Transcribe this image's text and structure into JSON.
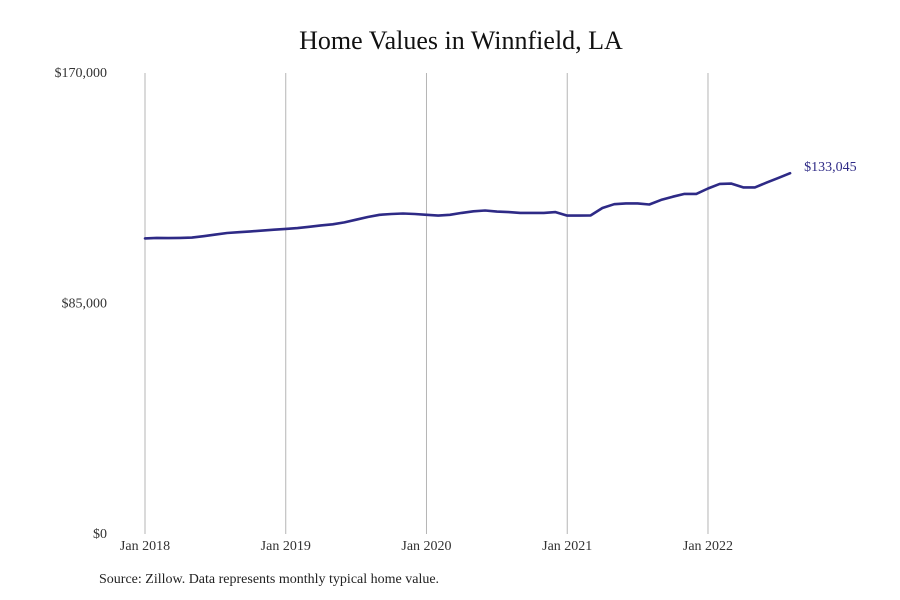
{
  "chart_data": {
    "type": "line",
    "title": "Home Values in Winnfield, LA",
    "xlabel": "",
    "ylabel": "",
    "ylim": [
      0,
      170000
    ],
    "xlim": [
      "2018-01",
      "2022-12"
    ],
    "y_ticks": [
      {
        "value": 0,
        "label": "$0"
      },
      {
        "value": 85000,
        "label": "$85,000"
      },
      {
        "value": 170000,
        "label": "$170,000"
      }
    ],
    "x_ticks": [
      {
        "date": "2018-01",
        "label": "Jan 2018"
      },
      {
        "date": "2019-01",
        "label": "Jan 2019"
      },
      {
        "date": "2020-01",
        "label": "Jan 2020"
      },
      {
        "date": "2021-01",
        "label": "Jan 2021"
      },
      {
        "date": "2022-01",
        "label": "Jan 2022"
      }
    ],
    "grid": "vertical",
    "line_color": "#2e2a86",
    "end_label": "$133,045",
    "series": [
      {
        "x": [
          "2018-01",
          "2018-02",
          "2018-03",
          "2018-04",
          "2018-05",
          "2018-06",
          "2018-07",
          "2018-08",
          "2018-09",
          "2018-10",
          "2018-11",
          "2018-12",
          "2019-01",
          "2019-02",
          "2019-03",
          "2019-04",
          "2019-05",
          "2019-06",
          "2019-07",
          "2019-08",
          "2019-09",
          "2019-10",
          "2019-11",
          "2019-12",
          "2020-01",
          "2020-02",
          "2020-03",
          "2020-04",
          "2020-05",
          "2020-06",
          "2020-07",
          "2020-08",
          "2020-09",
          "2020-10",
          "2020-11",
          "2020-12",
          "2021-01",
          "2021-02",
          "2021-03",
          "2021-04",
          "2021-05",
          "2021-06",
          "2021-07",
          "2021-08",
          "2021-09",
          "2021-10",
          "2021-11",
          "2021-12",
          "2022-01",
          "2022-02",
          "2022-03",
          "2022-04",
          "2022-05",
          "2022-06",
          "2022-07",
          "2022-08"
        ],
        "values": [
          109000,
          109200,
          109100,
          109200,
          109300,
          109800,
          110400,
          111000,
          111300,
          111600,
          111900,
          112200,
          112500,
          112800,
          113300,
          113800,
          114200,
          114900,
          115900,
          116900,
          117700,
          118000,
          118200,
          118000,
          117700,
          117400,
          117700,
          118400,
          119000,
          119300,
          118900,
          118700,
          118400,
          118400,
          118400,
          118700,
          117400,
          117400,
          117500,
          120200,
          121600,
          121900,
          121900,
          121500,
          123200,
          124400,
          125400,
          125400,
          127400,
          129100,
          129200,
          127800,
          127800,
          129600,
          131300,
          133045
        ]
      }
    ]
  },
  "source_note": "Source: Zillow. Data represents monthly typical home value."
}
